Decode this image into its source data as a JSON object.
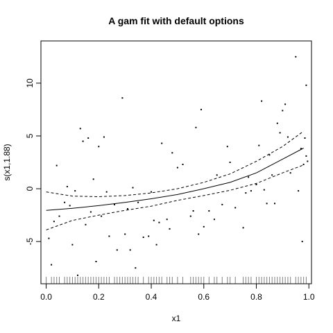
{
  "chart_data": {
    "type": "scatter",
    "title": "A gam fit with default options",
    "xlabel": "x1",
    "ylabel": "s(x1,1.88)",
    "xlim": [
      -0.02,
      1.01
    ],
    "ylim": [
      -9,
      14
    ],
    "x_ticks": [
      0.0,
      0.2,
      0.4,
      0.6,
      0.8,
      1.0
    ],
    "x_tick_labels": [
      "0.0",
      "0.2",
      "0.4",
      "0.6",
      "0.8",
      "1.0"
    ],
    "y_ticks": [
      -5,
      0,
      5,
      10
    ],
    "y_tick_labels": [
      "-5",
      "0",
      "5",
      "10"
    ],
    "grid": false,
    "colors": {
      "points": "#000000",
      "lines": "#000000",
      "rug": "#7f7f7f",
      "background": "#ffffff"
    },
    "fit": {
      "x": [
        0.0,
        0.1,
        0.2,
        0.3,
        0.4,
        0.5,
        0.6,
        0.7,
        0.8,
        0.9,
        0.98
      ],
      "y": [
        -2.05,
        -1.85,
        -1.6,
        -1.3,
        -0.95,
        -0.55,
        0.0,
        0.6,
        1.5,
        2.8,
        3.85
      ]
    },
    "upper_band": {
      "x": [
        0.0,
        0.1,
        0.2,
        0.3,
        0.4,
        0.5,
        0.6,
        0.7,
        0.8,
        0.9,
        0.98
      ],
      "y": [
        -0.3,
        -0.7,
        -0.75,
        -0.65,
        -0.4,
        0.0,
        0.6,
        1.4,
        2.6,
        4.0,
        5.45
      ]
    },
    "lower_band": {
      "x": [
        0.0,
        0.1,
        0.2,
        0.3,
        0.4,
        0.5,
        0.6,
        0.7,
        0.8,
        0.9,
        0.98
      ],
      "y": [
        -3.9,
        -3.0,
        -2.5,
        -2.05,
        -1.65,
        -1.1,
        -0.65,
        -0.15,
        0.5,
        1.5,
        2.25
      ]
    },
    "points": [
      [
        0.01,
        -4.7
      ],
      [
        0.02,
        -7.2
      ],
      [
        0.03,
        -3.1
      ],
      [
        0.04,
        2.2
      ],
      [
        0.05,
        -2.6
      ],
      [
        0.07,
        -1.3
      ],
      [
        0.08,
        0.2
      ],
      [
        0.09,
        -1.6
      ],
      [
        0.1,
        -5.3
      ],
      [
        0.11,
        -0.2
      ],
      [
        0.12,
        -8.2
      ],
      [
        0.13,
        5.7
      ],
      [
        0.14,
        4.5
      ],
      [
        0.15,
        -3.4
      ],
      [
        0.16,
        4.8
      ],
      [
        0.17,
        -2.2
      ],
      [
        0.18,
        0.9
      ],
      [
        0.19,
        -6.9
      ],
      [
        0.2,
        4.0
      ],
      [
        0.21,
        -2.6
      ],
      [
        0.22,
        4.9
      ],
      [
        0.23,
        -0.3
      ],
      [
        0.24,
        -4.5
      ],
      [
        0.26,
        -1.5
      ],
      [
        0.27,
        -5.8
      ],
      [
        0.29,
        8.6
      ],
      [
        0.3,
        -4.3
      ],
      [
        0.31,
        -1.9
      ],
      [
        0.32,
        -5.8
      ],
      [
        0.33,
        0.1
      ],
      [
        0.34,
        -7.5
      ],
      [
        0.35,
        -1.3
      ],
      [
        0.37,
        -4.6
      ],
      [
        0.39,
        -4.5
      ],
      [
        0.4,
        -0.3
      ],
      [
        0.41,
        -3.0
      ],
      [
        0.42,
        -5.3
      ],
      [
        0.43,
        -3.2
      ],
      [
        0.44,
        4.3
      ],
      [
        0.46,
        -2.9
      ],
      [
        0.47,
        -3.8
      ],
      [
        0.48,
        3.4
      ],
      [
        0.5,
        2.0
      ],
      [
        0.52,
        2.3
      ],
      [
        0.55,
        -2.6
      ],
      [
        0.56,
        -2.1
      ],
      [
        0.57,
        5.8
      ],
      [
        0.58,
        -4.3
      ],
      [
        0.59,
        7.5
      ],
      [
        0.6,
        -3.6
      ],
      [
        0.62,
        -2.1
      ],
      [
        0.64,
        -2.9
      ],
      [
        0.65,
        1.3
      ],
      [
        0.67,
        -1.5
      ],
      [
        0.69,
        4.0
      ],
      [
        0.7,
        2.5
      ],
      [
        0.72,
        -1.8
      ],
      [
        0.75,
        -3.7
      ],
      [
        0.76,
        -0.4
      ],
      [
        0.77,
        1.1
      ],
      [
        0.78,
        -0.2
      ],
      [
        0.8,
        0.4
      ],
      [
        0.81,
        4.1
      ],
      [
        0.82,
        8.3
      ],
      [
        0.83,
        -0.1
      ],
      [
        0.84,
        -1.4
      ],
      [
        0.85,
        3.2
      ],
      [
        0.86,
        1.3
      ],
      [
        0.87,
        -1.4
      ],
      [
        0.88,
        6.2
      ],
      [
        0.89,
        5.3
      ],
      [
        0.9,
        7.4
      ],
      [
        0.91,
        8.0
      ],
      [
        0.92,
        4.9
      ],
      [
        0.93,
        1.5
      ],
      [
        0.95,
        12.5
      ],
      [
        0.96,
        -0.2
      ],
      [
        0.97,
        3.8
      ],
      [
        0.975,
        -5.0
      ],
      [
        0.98,
        2.3
      ],
      [
        0.985,
        4.8
      ],
      [
        0.99,
        9.8
      ],
      [
        0.99,
        3.1
      ],
      [
        0.995,
        2.6
      ]
    ],
    "rug": [
      0.0,
      0.02,
      0.03,
      0.04,
      0.05,
      0.07,
      0.08,
      0.09,
      0.1,
      0.11,
      0.12,
      0.13,
      0.14,
      0.15,
      0.16,
      0.17,
      0.18,
      0.19,
      0.2,
      0.21,
      0.22,
      0.23,
      0.24,
      0.26,
      0.27,
      0.28,
      0.29,
      0.3,
      0.31,
      0.32,
      0.33,
      0.34,
      0.35,
      0.37,
      0.39,
      0.4,
      0.41,
      0.42,
      0.43,
      0.44,
      0.46,
      0.47,
      0.48,
      0.5,
      0.52,
      0.55,
      0.56,
      0.57,
      0.58,
      0.59,
      0.6,
      0.62,
      0.64,
      0.65,
      0.67,
      0.69,
      0.7,
      0.72,
      0.75,
      0.76,
      0.77,
      0.78,
      0.8,
      0.81,
      0.82,
      0.83,
      0.84,
      0.85,
      0.86,
      0.87,
      0.88,
      0.89,
      0.9,
      0.91,
      0.92,
      0.93,
      0.95,
      0.96,
      0.97,
      0.98,
      0.99
    ]
  }
}
